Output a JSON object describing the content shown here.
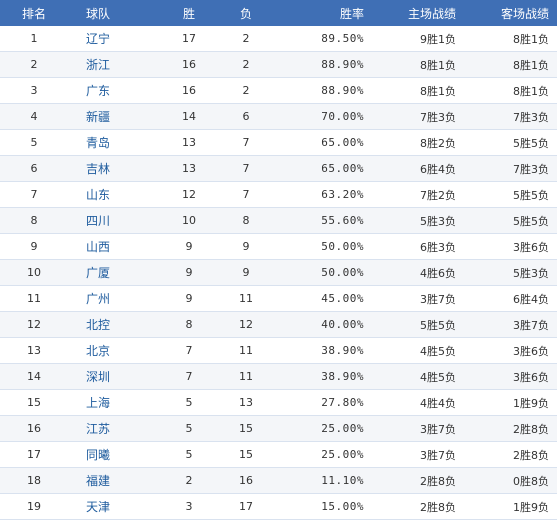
{
  "headers": {
    "rank": "排名",
    "team": "球队",
    "win": "胜",
    "loss": "负",
    "pct": "胜率",
    "home": "主场战绩",
    "away": "客场战绩"
  },
  "rows": [
    {
      "rank": "1",
      "team": "辽宁",
      "win": "17",
      "loss": "2",
      "pct": "89.50%",
      "home": "9胜1负",
      "away": "8胜1负"
    },
    {
      "rank": "2",
      "team": "浙江",
      "win": "16",
      "loss": "2",
      "pct": "88.90%",
      "home": "8胜1负",
      "away": "8胜1负"
    },
    {
      "rank": "3",
      "team": "广东",
      "win": "16",
      "loss": "2",
      "pct": "88.90%",
      "home": "8胜1负",
      "away": "8胜1负"
    },
    {
      "rank": "4",
      "team": "新疆",
      "win": "14",
      "loss": "6",
      "pct": "70.00%",
      "home": "7胜3负",
      "away": "7胜3负"
    },
    {
      "rank": "5",
      "team": "青岛",
      "win": "13",
      "loss": "7",
      "pct": "65.00%",
      "home": "8胜2负",
      "away": "5胜5负"
    },
    {
      "rank": "6",
      "team": "吉林",
      "win": "13",
      "loss": "7",
      "pct": "65.00%",
      "home": "6胜4负",
      "away": "7胜3负"
    },
    {
      "rank": "7",
      "team": "山东",
      "win": "12",
      "loss": "7",
      "pct": "63.20%",
      "home": "7胜2负",
      "away": "5胜5负"
    },
    {
      "rank": "8",
      "team": "四川",
      "win": "10",
      "loss": "8",
      "pct": "55.60%",
      "home": "5胜3负",
      "away": "5胜5负"
    },
    {
      "rank": "9",
      "team": "山西",
      "win": "9",
      "loss": "9",
      "pct": "50.00%",
      "home": "6胜3负",
      "away": "3胜6负"
    },
    {
      "rank": "10",
      "team": "广厦",
      "win": "9",
      "loss": "9",
      "pct": "50.00%",
      "home": "4胜6负",
      "away": "5胜3负"
    },
    {
      "rank": "11",
      "team": "广州",
      "win": "9",
      "loss": "11",
      "pct": "45.00%",
      "home": "3胜7负",
      "away": "6胜4负"
    },
    {
      "rank": "12",
      "team": "北控",
      "win": "8",
      "loss": "12",
      "pct": "40.00%",
      "home": "5胜5负",
      "away": "3胜7负"
    },
    {
      "rank": "13",
      "team": "北京",
      "win": "7",
      "loss": "11",
      "pct": "38.90%",
      "home": "4胜5负",
      "away": "3胜6负"
    },
    {
      "rank": "14",
      "team": "深圳",
      "win": "7",
      "loss": "11",
      "pct": "38.90%",
      "home": "4胜5负",
      "away": "3胜6负"
    },
    {
      "rank": "15",
      "team": "上海",
      "win": "5",
      "loss": "13",
      "pct": "27.80%",
      "home": "4胜4负",
      "away": "1胜9负"
    },
    {
      "rank": "16",
      "team": "江苏",
      "win": "5",
      "loss": "15",
      "pct": "25.00%",
      "home": "3胜7负",
      "away": "2胜8负"
    },
    {
      "rank": "17",
      "team": "同曦",
      "win": "5",
      "loss": "15",
      "pct": "25.00%",
      "home": "3胜7负",
      "away": "2胜8负"
    },
    {
      "rank": "18",
      "team": "福建",
      "win": "2",
      "loss": "16",
      "pct": "11.10%",
      "home": "2胜8负",
      "away": "0胜8负"
    },
    {
      "rank": "19",
      "team": "天津",
      "win": "3",
      "loss": "17",
      "pct": "15.00%",
      "home": "2胜8负",
      "away": "1胜9负"
    }
  ]
}
